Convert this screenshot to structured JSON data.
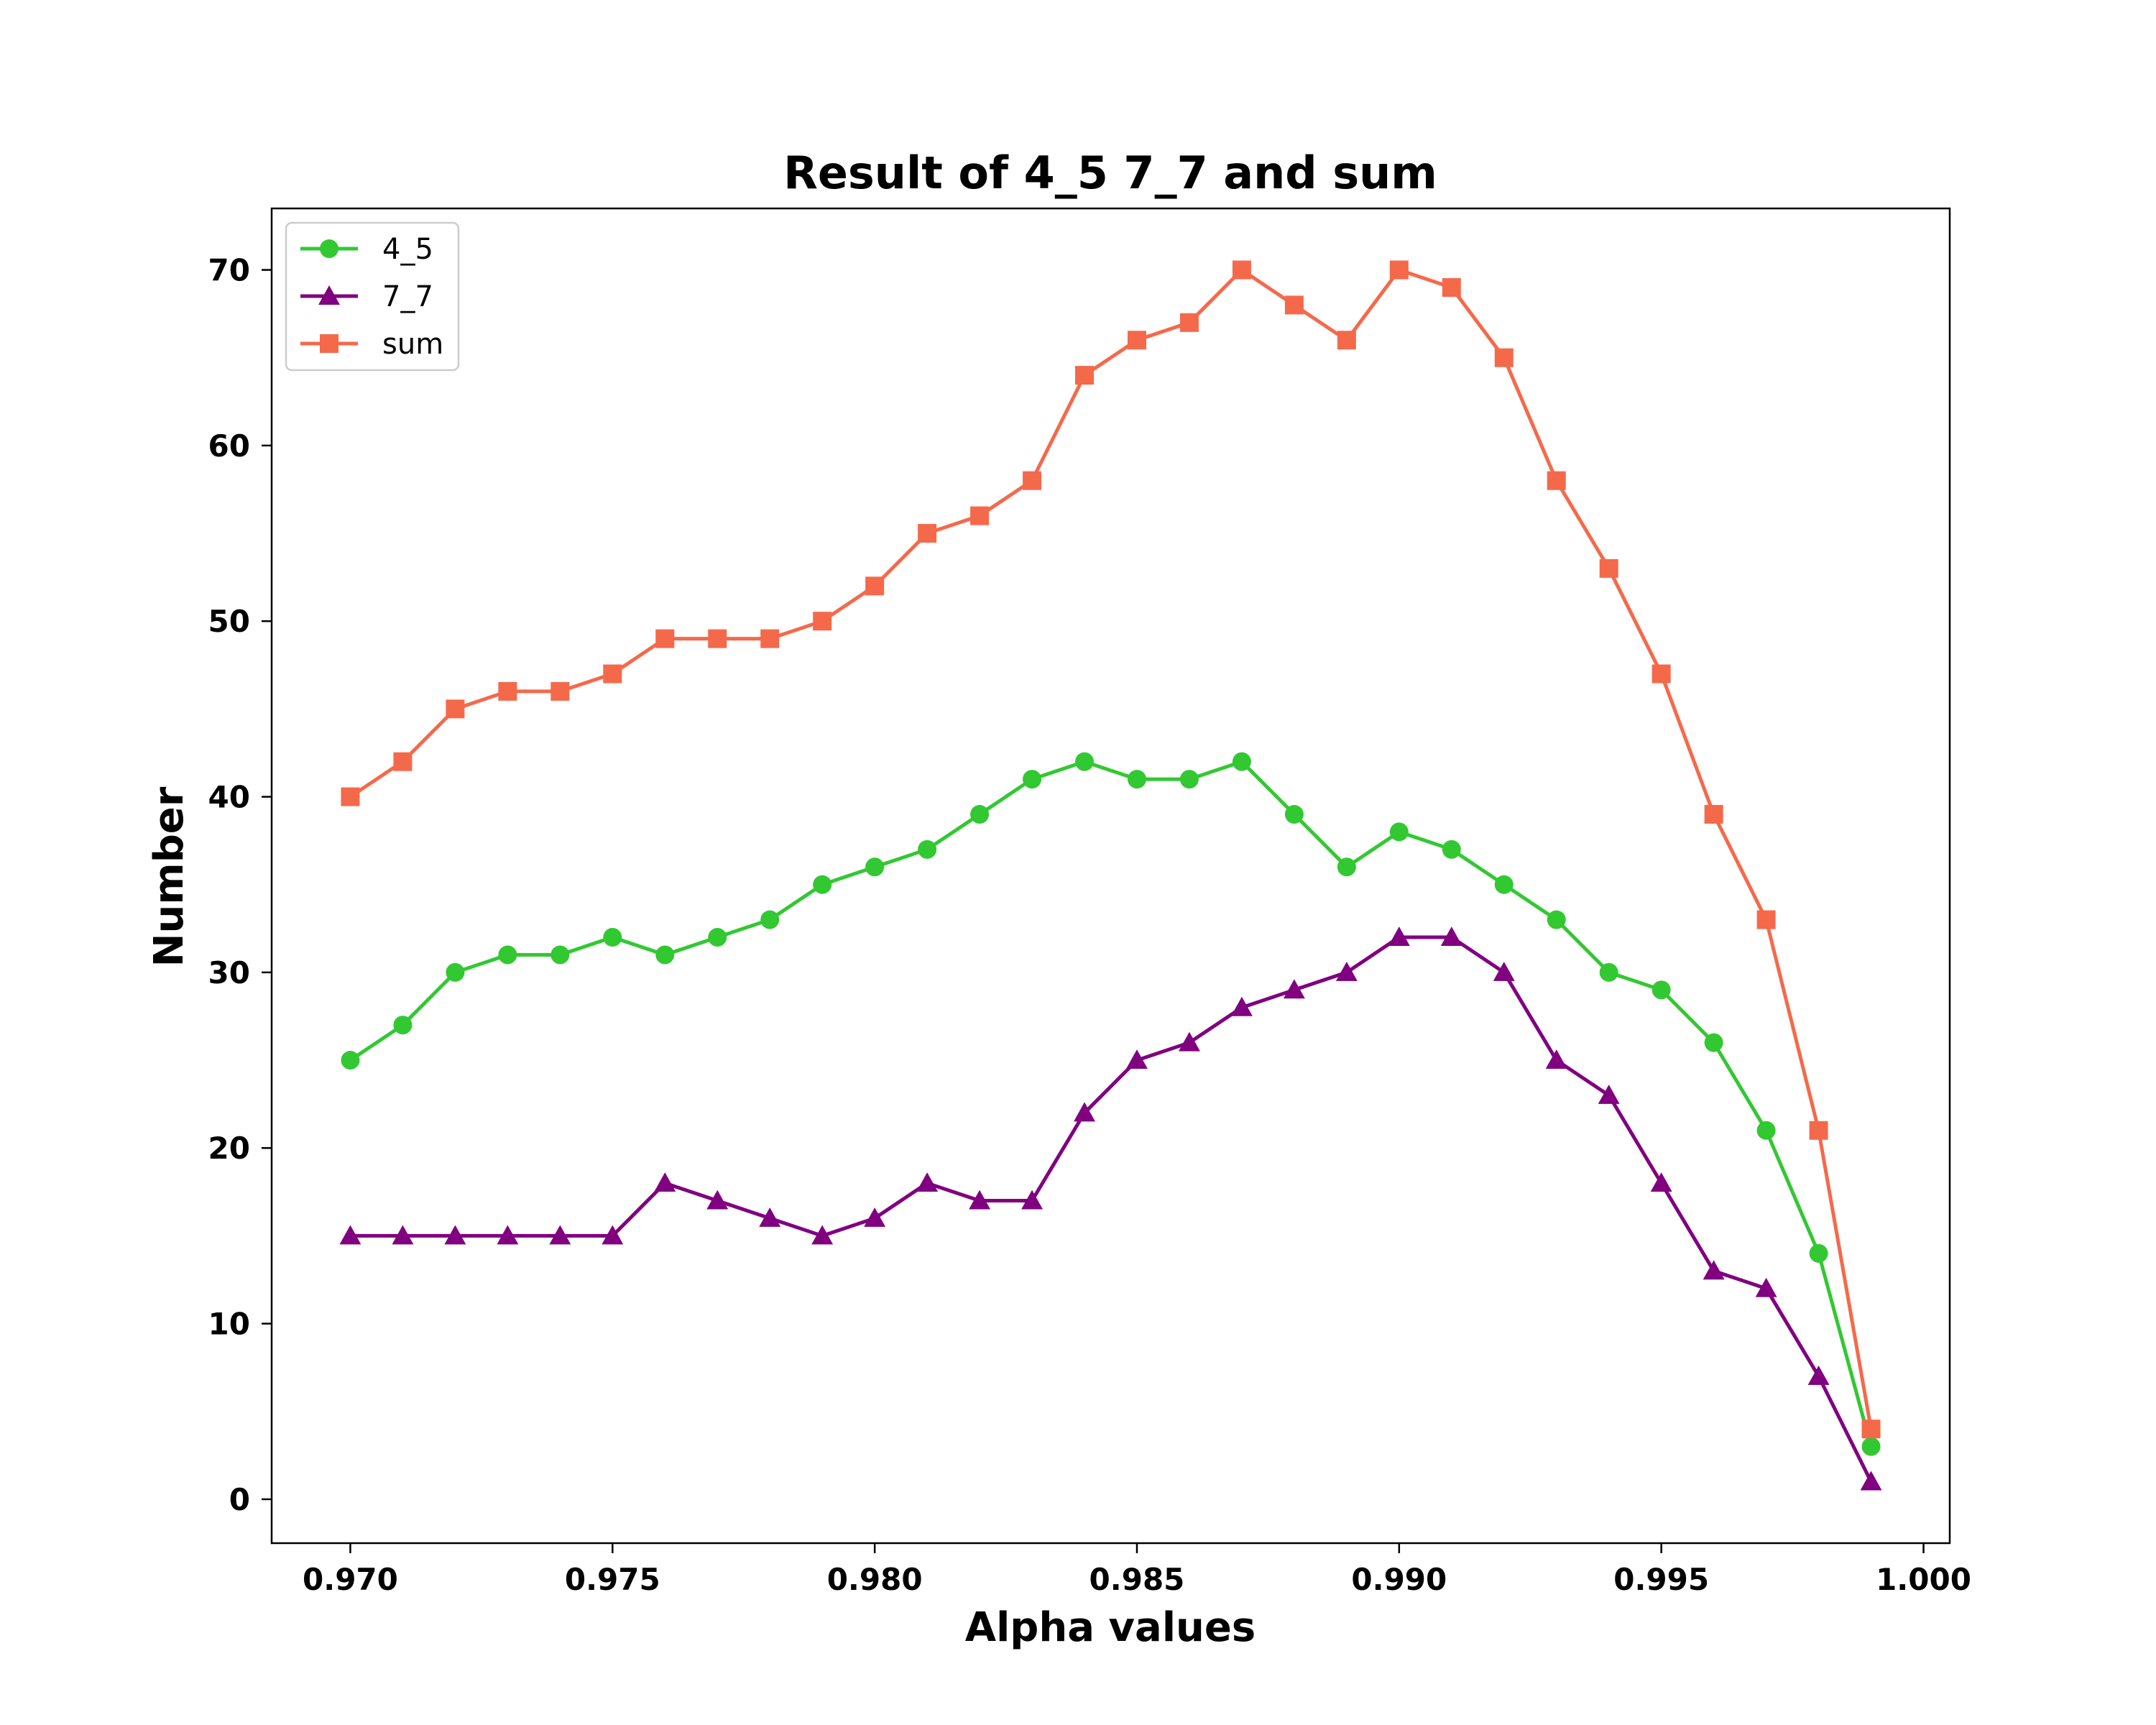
{
  "chart_data": {
    "type": "line",
    "title": "Result of 4_5 7_7 and sum",
    "xlabel": "Alpha values",
    "ylabel": "Number",
    "xlim": [
      0.9685,
      1.0005
    ],
    "ylim": [
      -2.5,
      73.5
    ],
    "xticks": [
      0.97,
      0.975,
      0.98,
      0.985,
      0.99,
      0.995,
      1.0
    ],
    "xtick_labels": [
      "0.970",
      "0.975",
      "0.980",
      "0.985",
      "0.990",
      "0.995",
      "1.000"
    ],
    "yticks": [
      0,
      10,
      20,
      30,
      40,
      50,
      60,
      70
    ],
    "ytick_labels": [
      "0",
      "10",
      "20",
      "30",
      "40",
      "50",
      "60",
      "70"
    ],
    "grid": false,
    "legend_position": "upper-left",
    "x": [
      0.97,
      0.971,
      0.972,
      0.973,
      0.974,
      0.975,
      0.976,
      0.977,
      0.978,
      0.979,
      0.98,
      0.981,
      0.982,
      0.983,
      0.984,
      0.985,
      0.986,
      0.987,
      0.988,
      0.989,
      0.99,
      0.991,
      0.992,
      0.993,
      0.994,
      0.995,
      0.996,
      0.997,
      0.998,
      0.999
    ],
    "series": [
      {
        "name": "4_5",
        "color": "#32c832",
        "marker": "circle",
        "values": [
          25,
          27,
          30,
          31,
          31,
          32,
          31,
          32,
          33,
          35,
          36,
          37,
          39,
          41,
          42,
          41,
          41,
          42,
          39,
          36,
          38,
          37,
          35,
          33,
          30,
          29,
          26,
          21,
          14,
          3
        ]
      },
      {
        "name": "7_7",
        "color": "#800080",
        "marker": "triangle",
        "values": [
          15,
          15,
          15,
          15,
          15,
          15,
          18,
          17,
          16,
          15,
          16,
          18,
          17,
          17,
          22,
          25,
          26,
          28,
          29,
          30,
          32,
          32,
          30,
          25,
          23,
          18,
          13,
          12,
          7,
          1
        ]
      },
      {
        "name": "sum",
        "color": "#f5694b",
        "marker": "square",
        "values": [
          40,
          42,
          45,
          46,
          46,
          47,
          49,
          49,
          49,
          50,
          52,
          55,
          56,
          58,
          64,
          66,
          67,
          70,
          68,
          66,
          70,
          69,
          65,
          58,
          53,
          47,
          39,
          33,
          21,
          4
        ]
      }
    ]
  }
}
